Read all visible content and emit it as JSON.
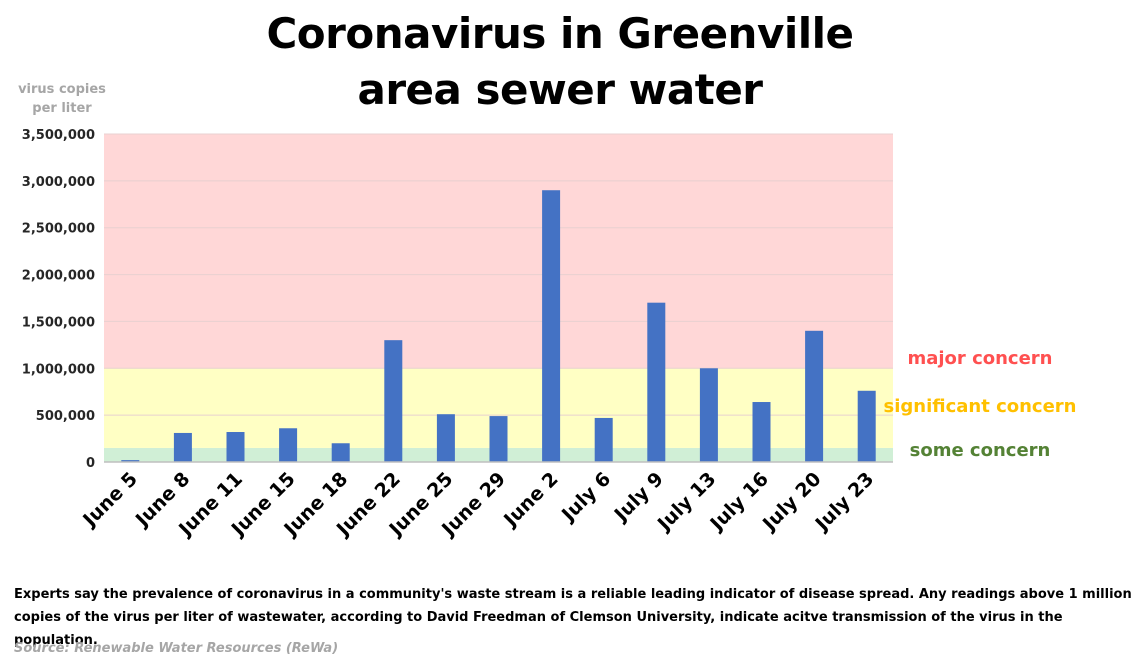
{
  "chart_data": {
    "type": "bar",
    "title": "Coronavirus in Greenville area sewer water",
    "ylabel": "virus copies per liter",
    "xlabel": "",
    "ylim": [
      0,
      3500000
    ],
    "yticks": [
      0,
      500000,
      1000000,
      1500000,
      2000000,
      2500000,
      3000000,
      3500000
    ],
    "ytick_labels": [
      "0",
      "500,000",
      "1,000,000",
      "1,500,000",
      "2,000,000",
      "2,500,000",
      "3,000,000",
      "3,500,000"
    ],
    "categories": [
      "June 5",
      "June 8",
      "June 11",
      "June 15",
      "June 18",
      "June 22",
      "June 25",
      "June 29",
      "June 2",
      "July 6",
      "July 9",
      "July 13",
      "July 16",
      "July 20",
      "July 23"
    ],
    "values": [
      20000,
      310000,
      320000,
      360000,
      200000,
      1300000,
      510000,
      490000,
      2900000,
      470000,
      1700000,
      1000000,
      640000,
      1400000,
      760000
    ],
    "bar_color": "#4472c4",
    "grid": true,
    "zones": [
      {
        "label": "some concern",
        "from": 0,
        "to": 150000,
        "color": "#d0efd6",
        "label_color": "#548235"
      },
      {
        "label": "significant concern",
        "from": 150000,
        "to": 1000000,
        "color": "#ffffc4",
        "label_color": "#ffc000"
      },
      {
        "label": "major concern",
        "from": 1000000,
        "to": 3500000,
        "color": "#ffd7d7",
        "label_color": "#ff5050"
      }
    ]
  },
  "header": {
    "title_line1": "Coronavirus in Greenville",
    "title_line2": "area sewer water",
    "ylabel_line1": "virus copies",
    "ylabel_line2": "per liter"
  },
  "footer": {
    "note": "Experts say the prevalence of coronavirus in a community's waste stream is a reliable leading indicator of disease spread. Any readings above 1 million copies of the virus per liter of wastewater, according to David Freedman of Clemson University, indicate acitve transmission of the virus in the population.",
    "source": "Source: Renewable Water Resources (ReWa)"
  }
}
